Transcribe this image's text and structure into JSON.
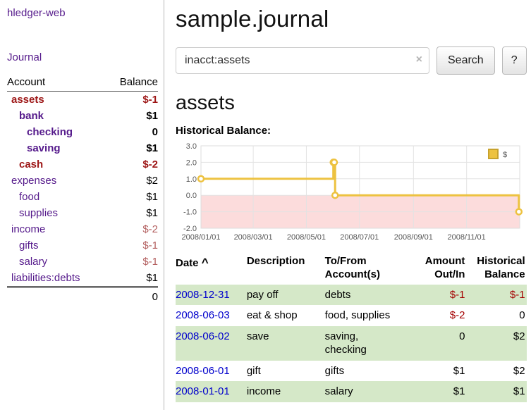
{
  "app": {
    "title": "hledger-web",
    "nav": {
      "journal": "Journal"
    }
  },
  "colors": {
    "link_purple": "#551a8b",
    "link_blue": "#0000cc",
    "negative_red": "#9d1616",
    "negative_red_soft": "#b35f5f",
    "row_green": "#d5e8c8",
    "series_gold": "#edc240",
    "negative_region_pink": "#fcdcdc"
  },
  "sidebar": {
    "accounts_header": {
      "account": "Account",
      "balance": "Balance"
    },
    "accounts": [
      {
        "name": "assets",
        "indent": 0,
        "balance": "$-1",
        "bold": true,
        "negative": true,
        "name_negative": true
      },
      {
        "name": "bank",
        "indent": 1,
        "balance": "$1",
        "bold": true,
        "negative": false,
        "name_negative": false
      },
      {
        "name": "checking",
        "indent": 2,
        "balance": "0",
        "bold": true,
        "negative": false,
        "name_negative": false
      },
      {
        "name": "saving",
        "indent": 2,
        "balance": "$1",
        "bold": true,
        "negative": false,
        "name_negative": false
      },
      {
        "name": "cash",
        "indent": 1,
        "balance": "$-2",
        "bold": true,
        "negative": true,
        "name_negative": true
      },
      {
        "name": "expenses",
        "indent": 0,
        "balance": "$2",
        "bold": false,
        "negative": false,
        "name_negative": false
      },
      {
        "name": "food",
        "indent": 1,
        "balance": "$1",
        "bold": false,
        "negative": false,
        "name_negative": false
      },
      {
        "name": "supplies",
        "indent": 1,
        "balance": "$1",
        "bold": false,
        "negative": false,
        "name_negative": false
      },
      {
        "name": "income",
        "indent": 0,
        "balance": "$-2",
        "bold": false,
        "negative": true,
        "name_negative": false
      },
      {
        "name": "gifts",
        "indent": 1,
        "balance": "$-1",
        "bold": false,
        "negative": true,
        "name_negative": false
      },
      {
        "name": "salary",
        "indent": 1,
        "balance": "$-1",
        "bold": false,
        "negative": true,
        "name_negative": false
      },
      {
        "name": "liabilities:debts",
        "indent": 0,
        "balance": "$1",
        "bold": false,
        "negative": false,
        "name_negative": false
      }
    ],
    "total": "0"
  },
  "main": {
    "title": "sample.journal",
    "search": {
      "value": "inacct:assets",
      "clear_label": "×",
      "button_label": "Search",
      "help_label": "?"
    },
    "account_heading": "assets",
    "chart_title": "Historical Balance:",
    "register": {
      "headers": {
        "date": "Date",
        "sort_indicator": "^",
        "description": "Description",
        "account": "To/From Account(s)",
        "amount": "Amount Out/In",
        "balance": "Historical Balance"
      },
      "rows": [
        {
          "date": "2008-12-31",
          "description": "pay off",
          "accounts": [
            "debts"
          ],
          "amount": "$-1",
          "amount_negative": true,
          "balance": "$-1",
          "balance_negative": true,
          "shaded": true
        },
        {
          "date": "2008-06-03",
          "description": "eat & shop",
          "accounts": [
            "food, supplies"
          ],
          "amount": "$-2",
          "amount_negative": true,
          "balance": "0",
          "balance_negative": false,
          "shaded": false
        },
        {
          "date": "2008-06-02",
          "description": "save",
          "accounts": [
            "saving,",
            "checking"
          ],
          "amount": "0",
          "amount_negative": false,
          "balance": "$2",
          "balance_negative": false,
          "shaded": true
        },
        {
          "date": "2008-06-01",
          "description": "gift",
          "accounts": [
            "gifts"
          ],
          "amount": "$1",
          "amount_negative": false,
          "balance": "$2",
          "balance_negative": false,
          "shaded": false
        },
        {
          "date": "2008-01-01",
          "description": "income",
          "accounts": [
            "salary"
          ],
          "amount": "$1",
          "amount_negative": false,
          "balance": "$1",
          "balance_negative": false,
          "shaded": true
        }
      ]
    }
  },
  "chart_data": {
    "type": "line",
    "step": true,
    "title": "Historical Balance",
    "legend": [
      {
        "label": "$",
        "color": "#edc240"
      }
    ],
    "series": [
      {
        "name": "$",
        "color": "#edc240",
        "points": [
          {
            "x": "2008-01-01",
            "y": 1
          },
          {
            "x": "2008-06-01",
            "y": 2
          },
          {
            "x": "2008-06-02",
            "y": 2
          },
          {
            "x": "2008-06-03",
            "y": 0
          },
          {
            "x": "2008-12-31",
            "y": -1
          }
        ]
      }
    ],
    "x_range": [
      "2008-01-01",
      "2009-01-01"
    ],
    "x_ticks": [
      "2008/01/01",
      "2008/03/01",
      "2008/05/01",
      "2008/07/01",
      "2008/09/01",
      "2008/11/01"
    ],
    "y_ticks": [
      "3.0",
      "2.0",
      "1.0",
      "0.0",
      "-1.0",
      "-2.0"
    ],
    "ylim": [
      -2,
      3
    ],
    "grid": true,
    "legend_position": "top-right",
    "negative_region": {
      "below": 0,
      "color": "#fcdcdc"
    }
  }
}
